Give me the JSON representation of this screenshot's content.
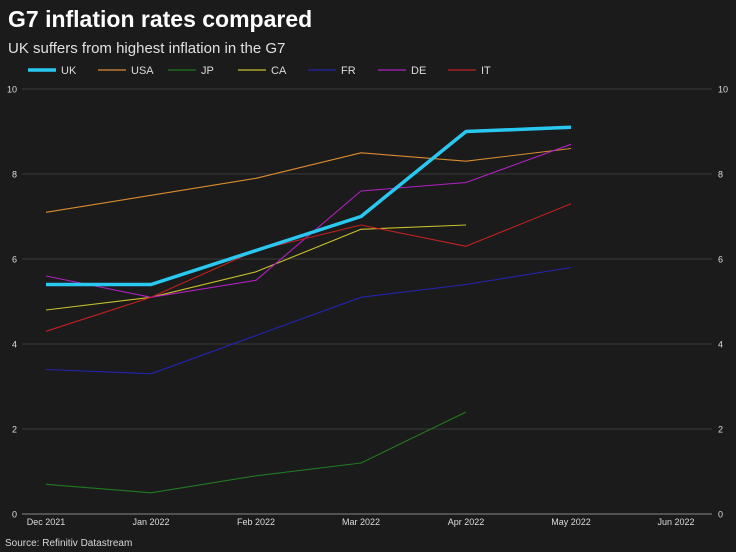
{
  "title": "G7 inflation rates compared",
  "subtitle": "UK suffers from highest inflation in the G7",
  "source": "Source: Refinitiv Datastream",
  "chart_data": {
    "type": "line",
    "categories": [
      "Dec 2021",
      "Jan 2022",
      "Feb 2022",
      "Mar 2022",
      "Apr 2022",
      "May 2022",
      "Jun 2022"
    ],
    "ylim": [
      0,
      10
    ],
    "yticks": [
      "0",
      "2",
      "4",
      "6",
      "8",
      "10"
    ],
    "grid": true,
    "legend_position": "top-left",
    "series": [
      {
        "name": "UK",
        "color": "#29c8f0",
        "highlight": true,
        "values": [
          5.4,
          5.4,
          6.2,
          7.0,
          9.0,
          9.1,
          null
        ]
      },
      {
        "name": "USA",
        "color": "#d98c2e",
        "values": [
          7.1,
          7.5,
          7.9,
          8.5,
          8.3,
          8.6,
          null
        ]
      },
      {
        "name": "JP",
        "color": "#1f7a1f",
        "values": [
          0.7,
          0.5,
          0.9,
          1.2,
          2.4,
          null,
          null
        ]
      },
      {
        "name": "CA",
        "color": "#c9c02a",
        "values": [
          4.8,
          5.1,
          5.7,
          6.7,
          6.8,
          null,
          null
        ]
      },
      {
        "name": "FR",
        "color": "#2424b0",
        "values": [
          3.4,
          3.3,
          4.2,
          5.1,
          5.4,
          5.8,
          null
        ]
      },
      {
        "name": "DE",
        "color": "#b020c0",
        "values": [
          5.6,
          5.1,
          5.5,
          7.6,
          7.8,
          8.7,
          null
        ]
      },
      {
        "name": "IT",
        "color": "#c02020",
        "values": [
          4.3,
          5.1,
          6.2,
          6.8,
          6.3,
          7.3,
          null
        ]
      }
    ]
  }
}
